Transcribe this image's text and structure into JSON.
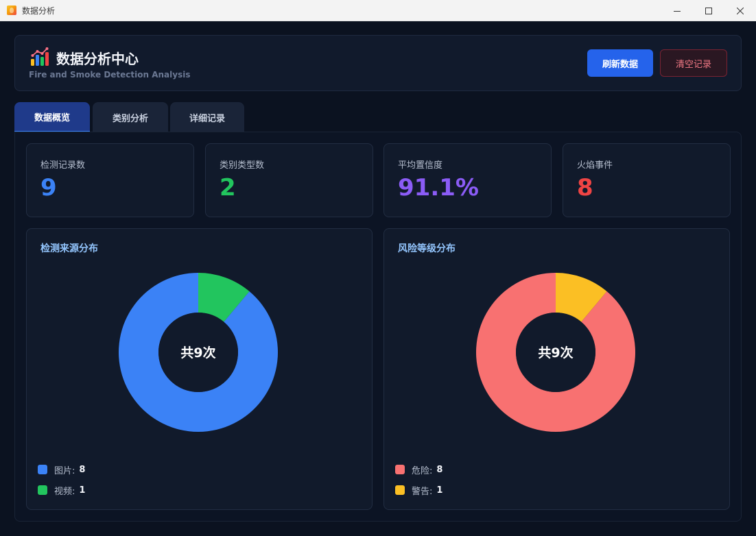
{
  "window": {
    "title": "数据分析"
  },
  "header": {
    "title": "数据分析中心",
    "subtitle": "Fire and Smoke Detection Analysis",
    "refresh_label": "刷新数据",
    "clear_label": "清空记录"
  },
  "tabs": [
    {
      "label": "数据概览",
      "active": true
    },
    {
      "label": "类别分析",
      "active": false
    },
    {
      "label": "详细记录",
      "active": false
    }
  ],
  "stats": [
    {
      "label": "检测记录数",
      "value": "9",
      "color": "#3b82f6"
    },
    {
      "label": "类别类型数",
      "value": "2",
      "color": "#22c55e"
    },
    {
      "label": "平均置信度",
      "value": "91.1%",
      "color": "#8b5cf6"
    },
    {
      "label": "火焰事件",
      "value": "8",
      "color": "#ef4444"
    }
  ],
  "chart_data": [
    {
      "type": "pie",
      "title": "检测来源分布",
      "center_text": "共9次",
      "total": 9,
      "categories": [
        "图片",
        "视频"
      ],
      "values": [
        8,
        1
      ],
      "colors": [
        "#3b82f6",
        "#22c55e"
      ],
      "legend_labels": [
        "图片:",
        "视频:"
      ],
      "legend_values": [
        "8",
        "1"
      ]
    },
    {
      "type": "pie",
      "title": "风险等级分布",
      "center_text": "共9次",
      "total": 9,
      "categories": [
        "危险",
        "警告"
      ],
      "values": [
        8,
        1
      ],
      "colors": [
        "#f87171",
        "#fbbf24"
      ],
      "legend_labels": [
        "危险:",
        "警告:"
      ],
      "legend_values": [
        "8",
        "1"
      ]
    }
  ],
  "icons": {
    "app": "fire-app-icon",
    "header": "bar-chart-icon",
    "minimize": "minimize-icon",
    "maximize": "maximize-icon",
    "close": "close-icon"
  }
}
